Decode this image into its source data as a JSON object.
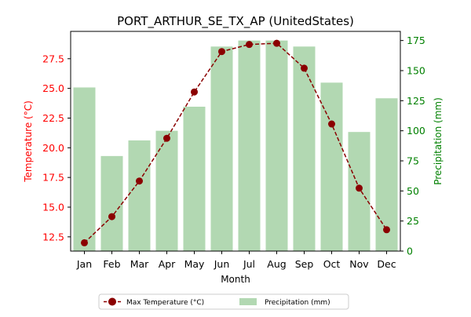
{
  "chart_data": {
    "type": "bar",
    "title": "PORT_ARTHUR_SE_TX_AP (UnitedStates)",
    "xlabel": "Month",
    "ylabel_left": "Temperature (°C)",
    "ylabel_right": "Precipitation (mm)",
    "categories": [
      "Jan",
      "Feb",
      "Mar",
      "Apr",
      "May",
      "Jun",
      "Jul",
      "Aug",
      "Sep",
      "Oct",
      "Nov",
      "Dec"
    ],
    "y_left_ticks": [
      "12.5",
      "15.0",
      "17.5",
      "20.0",
      "22.5",
      "25.0",
      "27.5"
    ],
    "y_right_ticks": [
      "0",
      "25",
      "50",
      "75",
      "100",
      "125",
      "150",
      "175"
    ],
    "ylim_left": [
      11.3,
      29.8
    ],
    "ylim_right": [
      0,
      182.6
    ],
    "grid": false,
    "legend_position": "bottom-center",
    "series": [
      {
        "name": "Max Temperature (°C)",
        "type": "line",
        "axis": "left",
        "color": "#8b0000",
        "values": [
          12.0,
          14.2,
          17.2,
          20.8,
          24.7,
          28.1,
          28.7,
          28.8,
          26.7,
          22.0,
          16.6,
          13.1
        ]
      },
      {
        "name": "Precipitation (mm)",
        "type": "bar",
        "axis": "right",
        "color": "#b2d8b2",
        "values": [
          136,
          79,
          92,
          100,
          120,
          170,
          175,
          175,
          170,
          140,
          99,
          127
        ]
      }
    ],
    "colors": {
      "left_axis": "#ff0000",
      "right_axis": "#008000",
      "line": "#8b0000",
      "bar": "#b2d8b2"
    }
  }
}
